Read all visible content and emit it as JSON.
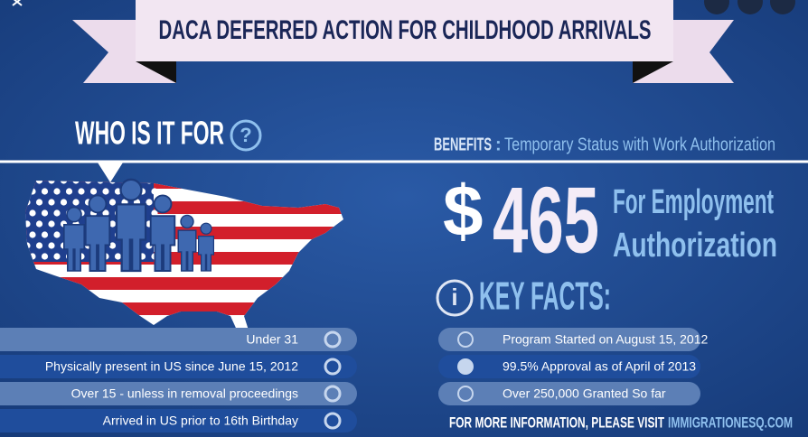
{
  "banner": {
    "title": "DACA DEFERRED ACTION FOR CHILDHOOD ARRIVALS"
  },
  "who": {
    "heading": "WHO IS IT FOR",
    "icon": "?"
  },
  "benefits": {
    "label": "BENEFITS",
    "separator": ":",
    "text": "Temporary Status with Work Authorization"
  },
  "fee": {
    "currency": "$",
    "amount": "465",
    "caption": [
      "For Employment",
      "Authorization"
    ]
  },
  "key_facts": {
    "icon": "i",
    "heading": "KEY FACTS:",
    "items": [
      "Program Started on August 15, 2012",
      "99.5% Approval as of April of 2013",
      "Over 250,000 Granted So far"
    ]
  },
  "criteria": [
    "Under 31",
    "Physically present in US since June 15, 2012",
    "Over 15 - unless in removal proceedings",
    "Arrived in US prior to 16th Birthday"
  ],
  "footer": {
    "text": "FOR MORE INFORMATION, PLEASE VISIT",
    "link": "IMMIGRATIONESQ.COM"
  }
}
